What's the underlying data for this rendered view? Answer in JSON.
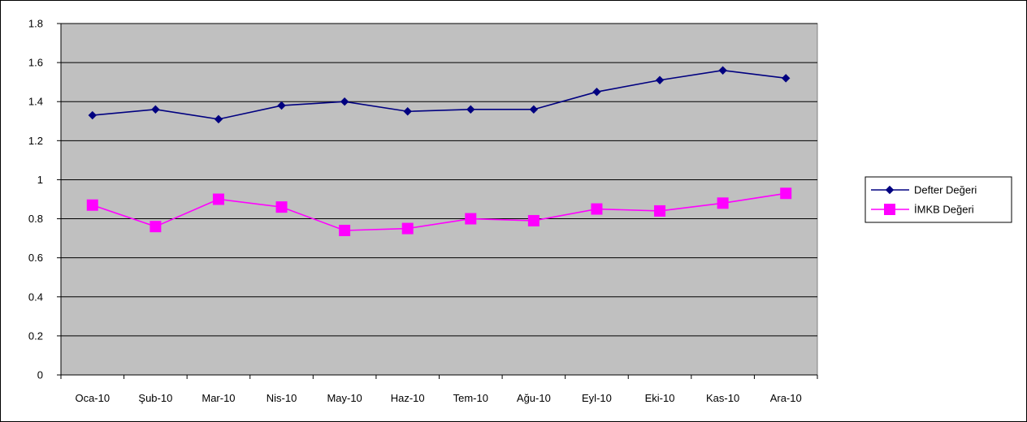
{
  "chart_data": {
    "type": "line",
    "title": "",
    "xlabel": "",
    "ylabel": "",
    "categories": [
      "Oca-10",
      "Şub-10",
      "Mar-10",
      "Nis-10",
      "May-10",
      "Haz-10",
      "Tem-10",
      "Ağu-10",
      "Eyl-10",
      "Eki-10",
      "Kas-10",
      "Ara-10"
    ],
    "ylim": [
      0,
      1.8
    ],
    "yticks": [
      "0",
      "0.2",
      "0.4",
      "0.6",
      "0.8",
      "1",
      "1.2",
      "1.4",
      "1.6",
      "1.8"
    ],
    "grid": true,
    "legend_position": "right",
    "plot_background": "#C0C0C0",
    "series": [
      {
        "name": "Defter Değeri",
        "color": "#000080",
        "marker": "diamond",
        "values": [
          1.33,
          1.36,
          1.31,
          1.38,
          1.4,
          1.35,
          1.36,
          1.36,
          1.45,
          1.51,
          1.56,
          1.52
        ]
      },
      {
        "name": "İMKB Değeri",
        "color": "#FF00FF",
        "marker": "square",
        "values": [
          0.87,
          0.76,
          0.9,
          0.86,
          0.74,
          0.75,
          0.8,
          0.79,
          0.85,
          0.84,
          0.88,
          0.93
        ]
      }
    ]
  }
}
